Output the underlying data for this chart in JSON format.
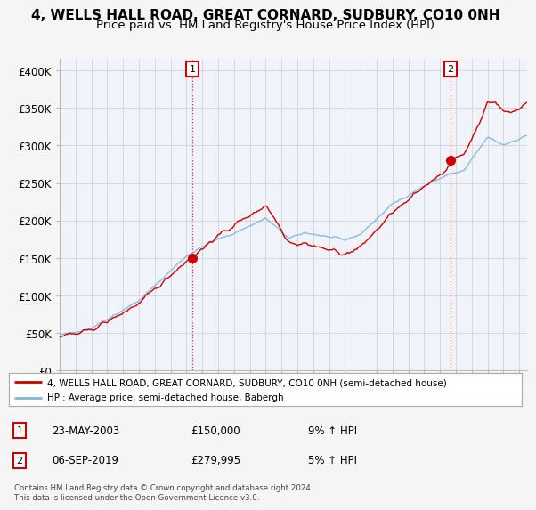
{
  "title": "4, WELLS HALL ROAD, GREAT CORNARD, SUDBURY, CO10 0NH",
  "subtitle": "Price paid vs. HM Land Registry's House Price Index (HPI)",
  "title_fontsize": 11,
  "subtitle_fontsize": 9.5,
  "background_color": "#f5f5f5",
  "grid_color": "#cccccc",
  "plot_bg": "#f0f4fa",
  "ylabel_values": [
    "£0",
    "£50K",
    "£100K",
    "£150K",
    "£200K",
    "£250K",
    "£300K",
    "£350K",
    "£400K"
  ],
  "yticks": [
    0,
    50000,
    100000,
    150000,
    200000,
    250000,
    300000,
    350000,
    400000
  ],
  "ylim": [
    0,
    415000
  ],
  "hpi_color": "#7fb3e0",
  "price_color": "#cc0000",
  "sale1_x": 2003.38,
  "sale1_y": 150000,
  "sale2_x": 2019.67,
  "sale2_y": 279995,
  "legend_label_price": "4, WELLS HALL ROAD, GREAT CORNARD, SUDBURY, CO10 0NH (semi-detached house)",
  "legend_label_hpi": "HPI: Average price, semi-detached house, Babergh",
  "annotation1_label": "1",
  "annotation1_date": "23-MAY-2003",
  "annotation1_price": "£150,000",
  "annotation1_hpi": "9% ↑ HPI",
  "annotation2_label": "2",
  "annotation2_date": "06-SEP-2019",
  "annotation2_price": "£279,995",
  "annotation2_hpi": "5% ↑ HPI",
  "footer": "Contains HM Land Registry data © Crown copyright and database right 2024.\nThis data is licensed under the Open Government Licence v3.0.",
  "xlim_start": 1995.0,
  "xlim_end": 2024.5
}
